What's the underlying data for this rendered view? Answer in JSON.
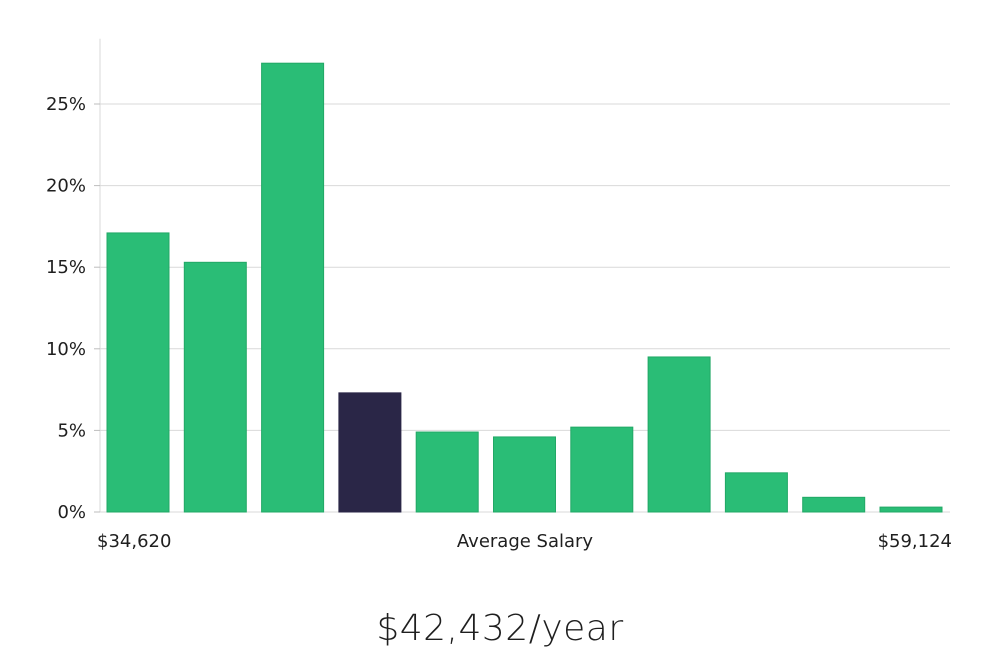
{
  "chart_data": {
    "type": "bar",
    "title": "",
    "xlabel": "Average Salary",
    "ylabel": "",
    "x_min_label": "$34,620",
    "x_max_label": "$59,124",
    "ylim": [
      0,
      29
    ],
    "yticks": [
      0,
      5,
      10,
      15,
      20,
      25
    ],
    "ytick_labels": [
      "0%",
      "5%",
      "10%",
      "15%",
      "20%",
      "25%"
    ],
    "grid": true,
    "values": [
      17.1,
      15.3,
      27.5,
      7.3,
      4.9,
      4.6,
      5.2,
      9.5,
      2.4,
      0.9,
      0.3
    ],
    "highlight_index": 3,
    "colors": {
      "bar": "#2abd76",
      "bar_stroke": "#22a866",
      "highlight": "#2a2647"
    }
  },
  "summary": {
    "salary": "$42,432/year"
  }
}
